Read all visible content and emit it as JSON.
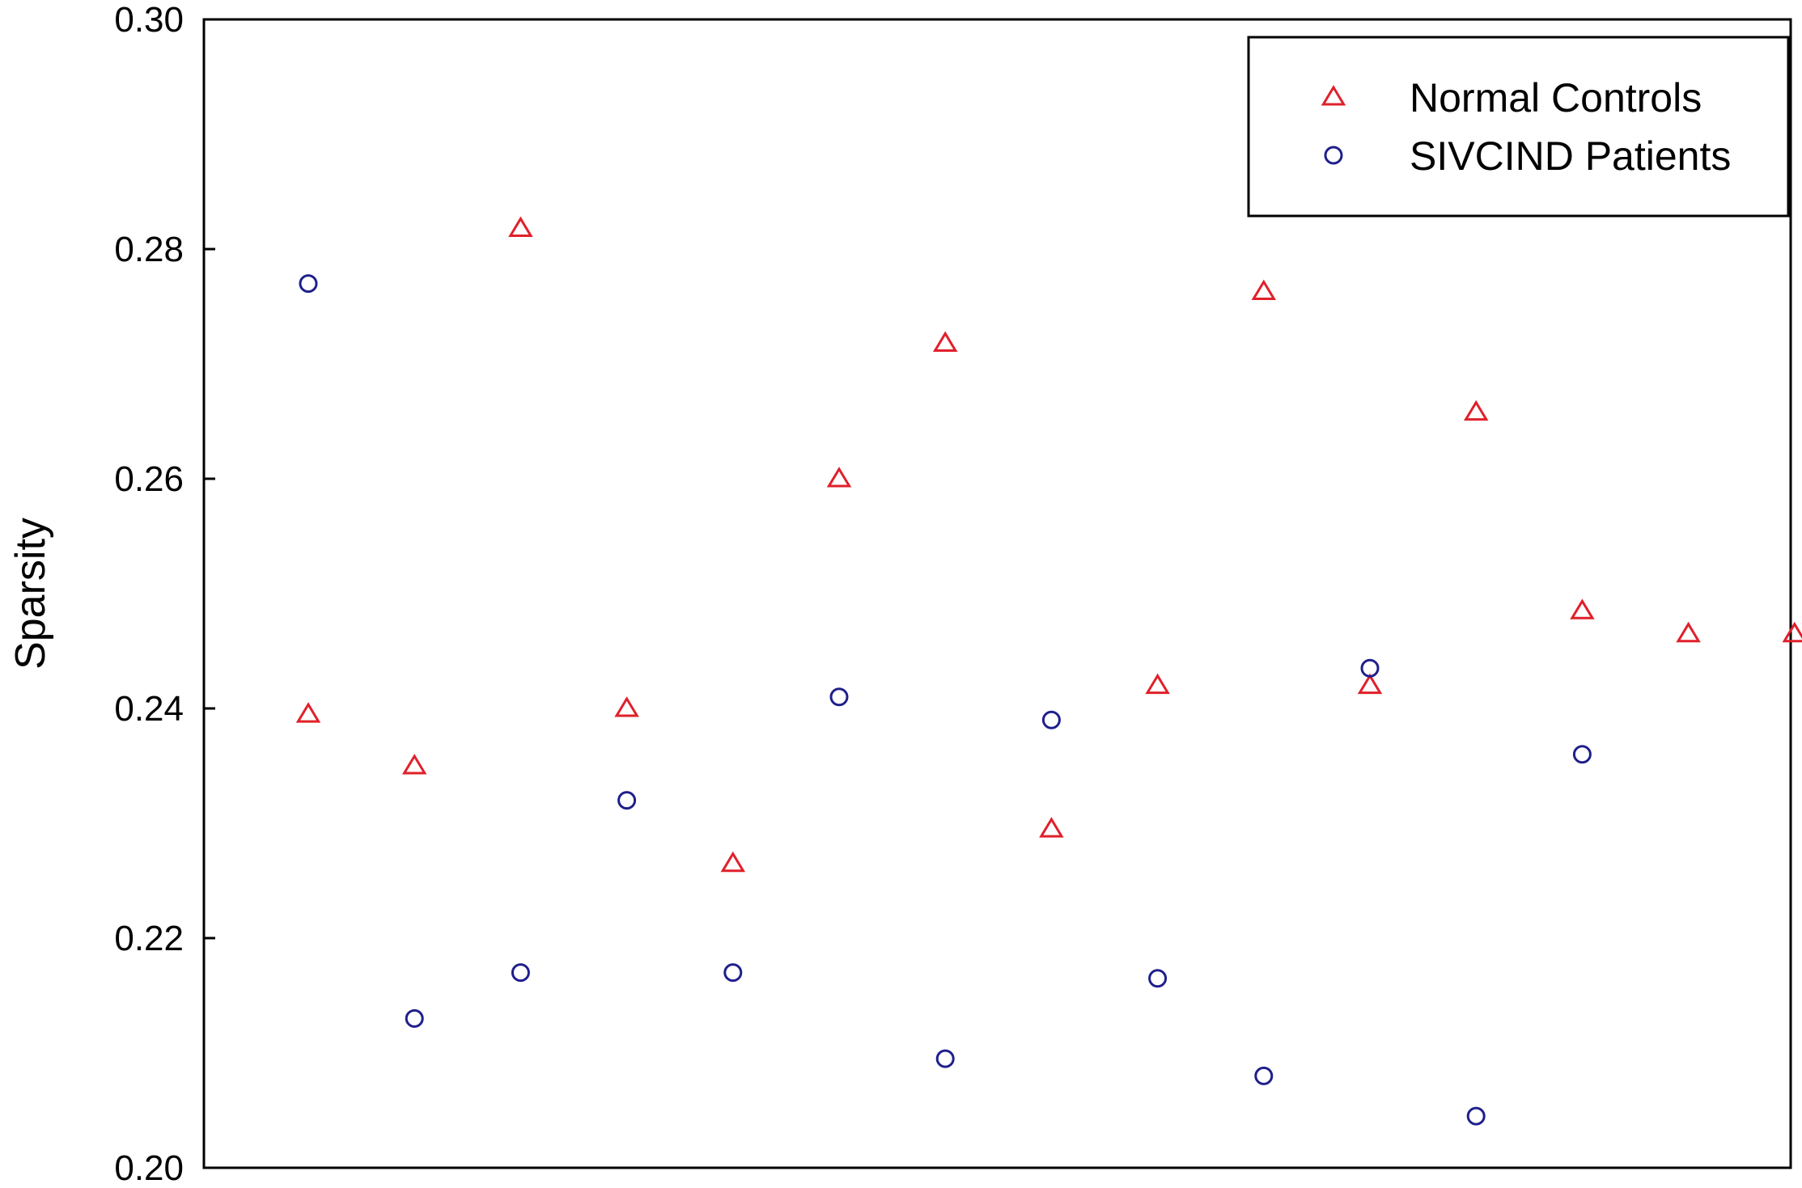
{
  "chart_data": {
    "type": "scatter",
    "title": "",
    "xlabel": "",
    "ylabel": "Sparsity",
    "ylim": [
      0.2,
      0.3
    ],
    "yticks": [
      "0.20",
      "0.22",
      "0.24",
      "0.26",
      "0.28",
      "0.30"
    ],
    "xlim": [
      0,
      17
    ],
    "grid": false,
    "legend_position": "top-right",
    "series": [
      {
        "name": "Normal Controls",
        "marker": "triangle",
        "color": "#e0202a",
        "x": [
          1,
          2,
          3,
          4,
          5,
          6,
          7,
          8,
          9,
          10,
          11,
          12,
          13,
          14,
          15
        ],
        "values": [
          0.2395,
          0.235,
          0.2818,
          0.24,
          0.2265,
          0.26,
          0.2718,
          0.2295,
          0.242,
          0.2763,
          0.242,
          0.2658,
          0.2485,
          0.2465,
          0.2465
        ]
      },
      {
        "name": "SIVCIND Patients",
        "marker": "circle",
        "color": "#1f1f8c",
        "x": [
          1,
          2,
          3,
          4,
          5,
          6,
          7,
          8,
          9,
          10,
          11,
          12,
          13
        ],
        "values": [
          0.277,
          0.213,
          0.217,
          0.232,
          0.217,
          0.241,
          0.2095,
          0.239,
          0.2165,
          0.208,
          0.2435,
          0.2045,
          0.236
        ]
      }
    ]
  }
}
